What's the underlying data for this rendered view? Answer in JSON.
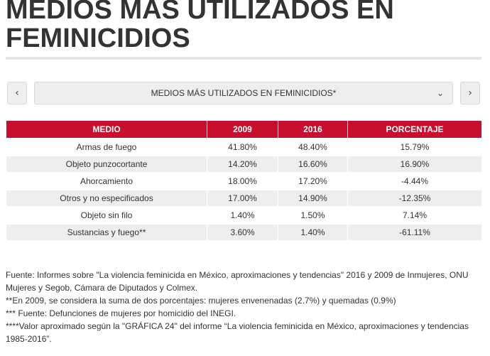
{
  "page": {
    "title": "MEDIOS MÁS UTILIZADOS EN FEMINICIDIOS"
  },
  "selector": {
    "prev_label": "‹",
    "next_label": "›",
    "selected": "MEDIOS MÁS UTILIZADOS EN FEMINICIDIOS*",
    "chevron": "⌄"
  },
  "table": {
    "headers": [
      "MEDIO",
      "2009",
      "2016",
      "PORCENTAJE"
    ],
    "rows": [
      [
        "Armas de fuego",
        "41.80%",
        "48.40%",
        "15.79%"
      ],
      [
        "Objeto punzocortante",
        "14.20%",
        "16.60%",
        "16.90%"
      ],
      [
        "Ahorcamiento",
        "18.00%",
        "17.20%",
        "-4.44%"
      ],
      [
        "Otros y no especificados",
        "17.00%",
        "14.90%",
        "-12.35%"
      ],
      [
        "Objeto sin filo",
        "1.40%",
        "1.50%",
        "7.14%"
      ],
      [
        "Sustancias y fuego**",
        "3.60%",
        "1.40%",
        "-61.11%"
      ]
    ]
  },
  "notes": [
    "Fuente: Informes sobre \"La violencia feminicida en México, aproximaciones y tendencias\" 2016 y 2009 de Inmujeres, ONU Mujeres y Segob, Cámara de Diputados y Colmex.",
    "**En 2009, se considera la suma de dos porcentajes: mujeres envenenadas (2.7%) y quemadas (0.9%)",
    "*** Fuente: Defunciones de mujeres por homicidio del INEGI.",
    "****Valor aproximado según la \"GRÁFICA 24\" del informe “La violencia feminicida en México, aproximaciones y tendencias 1985-2016”."
  ],
  "colors": {
    "header_bg": "#c8102e",
    "row_alt": "#eeeeee",
    "text": "#333333"
  }
}
